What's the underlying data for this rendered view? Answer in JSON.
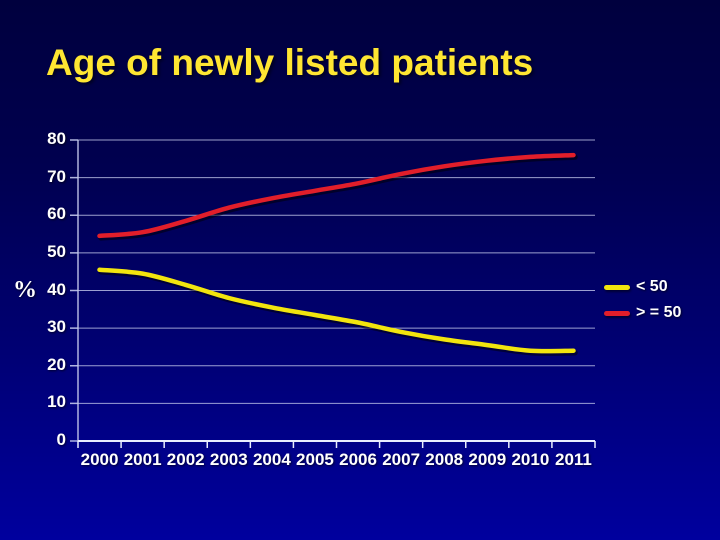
{
  "title": "Age of newly listed patients",
  "colors": {
    "bg_top": "#00003e",
    "bg_bottom": "#00009e",
    "title": "#ffe632",
    "grid": "#c3c8ec",
    "axis": "#e9edff",
    "text": "#ffffff"
  },
  "chart_data": {
    "type": "line",
    "title": "Age of newly listed patients",
    "xlabel": "",
    "ylabel": "%",
    "categories": [
      "2000",
      "2001",
      "2002",
      "2003",
      "2004",
      "2005",
      "2006",
      "2007",
      "2008",
      "2009",
      "2010",
      "2011"
    ],
    "y_ticks": [
      0,
      10,
      20,
      30,
      40,
      50,
      60,
      70,
      80
    ],
    "ylim": [
      0,
      80
    ],
    "grid": true,
    "legend_position": "right",
    "series": [
      {
        "name": "< 50",
        "color": "#f2e50e",
        "values": [
          45.5,
          44.5,
          41.5,
          38,
          35.5,
          33.5,
          31.5,
          29,
          27,
          25.5,
          24,
          24
        ]
      },
      {
        "name": "> = 50",
        "color": "#e11e2a",
        "values": [
          54.5,
          55.5,
          58.5,
          62,
          64.5,
          66.5,
          68.5,
          71,
          73,
          74.5,
          75.5,
          76
        ]
      }
    ]
  }
}
